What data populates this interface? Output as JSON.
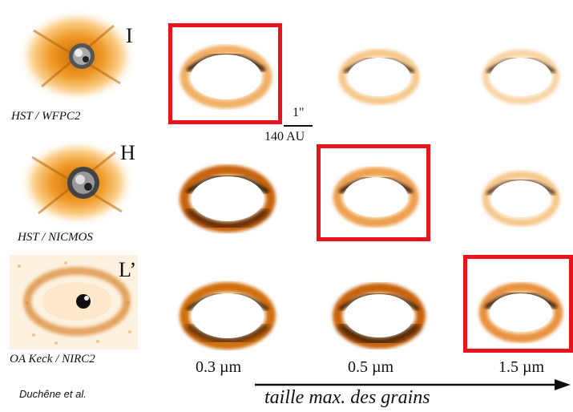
{
  "rows": [
    {
      "band": "I",
      "instrument": "HST / WFPC2"
    },
    {
      "band": "H",
      "instrument": "HST / NICMOS"
    },
    {
      "band": "L’",
      "instrument": "OA Keck / NIRC2"
    }
  ],
  "grain_sizes": [
    "0.3 µm",
    "0.5 µm",
    "1.5 µm"
  ],
  "scale_bar": {
    "angle": "1\"",
    "distance": "140 AU"
  },
  "credit": "Duchêne et al.",
  "axis_title": "taille max. des grains",
  "colors": {
    "highlight": "#e8141b",
    "ring_dark": "#3a1500",
    "ring_mid": "#d97a10",
    "ring_light": "#fbd79a"
  }
}
